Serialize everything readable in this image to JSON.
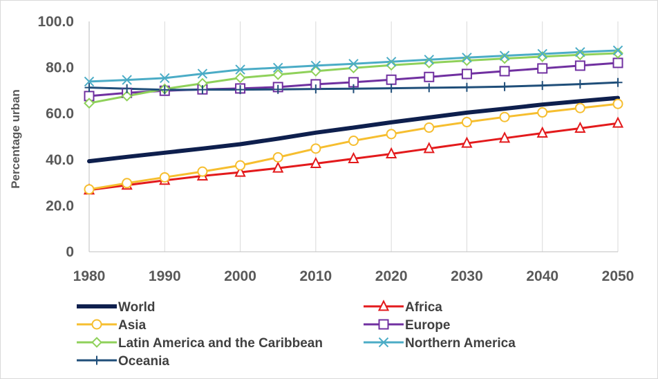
{
  "chart_data": {
    "type": "line",
    "title": "",
    "xlabel": "",
    "ylabel": "Percentage urban",
    "ylim": [
      0,
      100
    ],
    "xlim": [
      1980,
      2050
    ],
    "grid": "vertical",
    "legend_position": "bottom",
    "x": [
      1980,
      1985,
      1990,
      1995,
      2000,
      2005,
      2010,
      2015,
      2020,
      2025,
      2030,
      2035,
      2040,
      2045,
      2050
    ],
    "x_tick_labels": [
      "1980",
      "1990",
      "2000",
      "2010",
      "2020",
      "2030",
      "2040",
      "2050"
    ],
    "y_tick_labels": [
      "0",
      "20.0",
      "40.0",
      "60.0",
      "80.0",
      "100.0"
    ],
    "series": [
      {
        "name": "World",
        "color": "#0e1f4d",
        "marker": "none",
        "values": [
          39.3,
          41.2,
          43.0,
          44.8,
          46.7,
          49.1,
          51.7,
          53.9,
          56.2,
          58.3,
          60.4,
          62.1,
          63.9,
          65.4,
          66.8
        ]
      },
      {
        "name": "Africa",
        "color": "#e31a1c",
        "marker": "triangle",
        "values": [
          26.8,
          28.9,
          31.0,
          32.9,
          34.5,
          36.3,
          38.3,
          40.4,
          42.5,
          44.8,
          47.1,
          49.3,
          51.5,
          53.6,
          55.8
        ]
      },
      {
        "name": "Asia",
        "color": "#f6be2f",
        "marker": "circle",
        "values": [
          27.1,
          29.8,
          32.3,
          34.8,
          37.5,
          41.0,
          44.8,
          48.2,
          51.1,
          53.9,
          56.3,
          58.5,
          60.5,
          62.4,
          64.2
        ]
      },
      {
        "name": "Europe",
        "color": "#7030a0",
        "marker": "square",
        "values": [
          67.6,
          69.0,
          69.9,
          70.5,
          70.9,
          71.5,
          72.7,
          73.6,
          74.7,
          75.9,
          77.2,
          78.4,
          79.6,
          80.8,
          82.0
        ]
      },
      {
        "name": "Latin America and the Caribbean",
        "color": "#8fd15a",
        "marker": "diamond",
        "values": [
          64.5,
          67.6,
          70.7,
          73.1,
          75.5,
          76.9,
          78.4,
          79.8,
          81.0,
          82.0,
          83.0,
          83.9,
          84.7,
          85.5,
          86.2
        ]
      },
      {
        "name": "Northern America",
        "color": "#4bacc6",
        "marker": "x",
        "values": [
          73.9,
          74.6,
          75.4,
          77.3,
          79.1,
          79.9,
          80.8,
          81.6,
          82.5,
          83.4,
          84.3,
          85.1,
          85.9,
          86.7,
          87.4
        ]
      },
      {
        "name": "Oceania",
        "color": "#1f4e79",
        "marker": "plus",
        "values": [
          71.3,
          70.8,
          70.3,
          70.4,
          70.4,
          70.5,
          70.7,
          70.8,
          71.0,
          71.2,
          71.4,
          71.7,
          72.2,
          72.8,
          73.5
        ]
      }
    ]
  }
}
